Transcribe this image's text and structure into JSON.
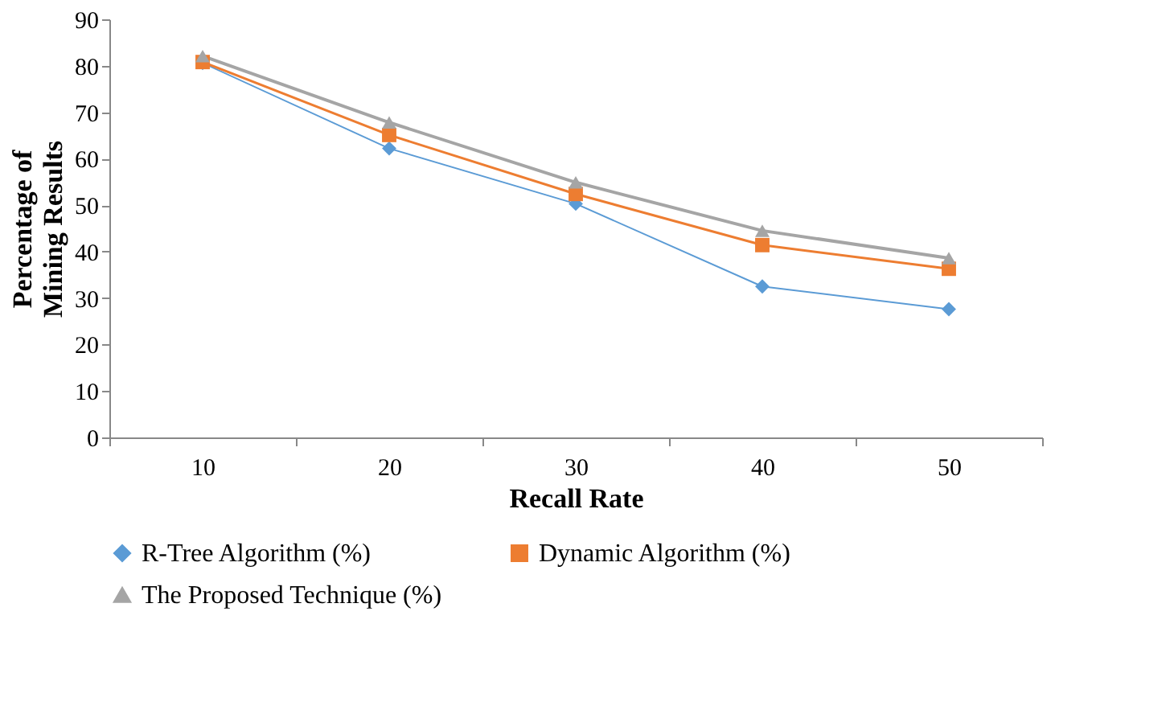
{
  "chart_data": {
    "type": "line",
    "xlabel": "Recall Rate",
    "ylabel": "Percentage of Mining Results",
    "categories": [
      "10",
      "20",
      "30",
      "40",
      "50"
    ],
    "series": [
      {
        "name": "R-Tree Algorithm (%)",
        "color": "#5b9bd5",
        "marker": "diamond",
        "values": [
          80.6,
          62.2,
          50.3,
          32.5,
          27.6
        ]
      },
      {
        "name": "Dynamic Algorithm (%)",
        "color": "#ed7d31",
        "marker": "square",
        "values": [
          80.8,
          65.1,
          52.4,
          41.4,
          36.3
        ]
      },
      {
        "name": "The Proposed Technique (%)",
        "color": "#a5a5a5",
        "marker": "triangle",
        "values": [
          82.1,
          67.8,
          54.9,
          44.5,
          38.6
        ]
      }
    ],
    "ylim": [
      0,
      90
    ],
    "yticks": [
      0,
      10,
      20,
      30,
      40,
      50,
      60,
      70,
      80,
      90
    ],
    "grid": false,
    "legend": "bottom"
  }
}
